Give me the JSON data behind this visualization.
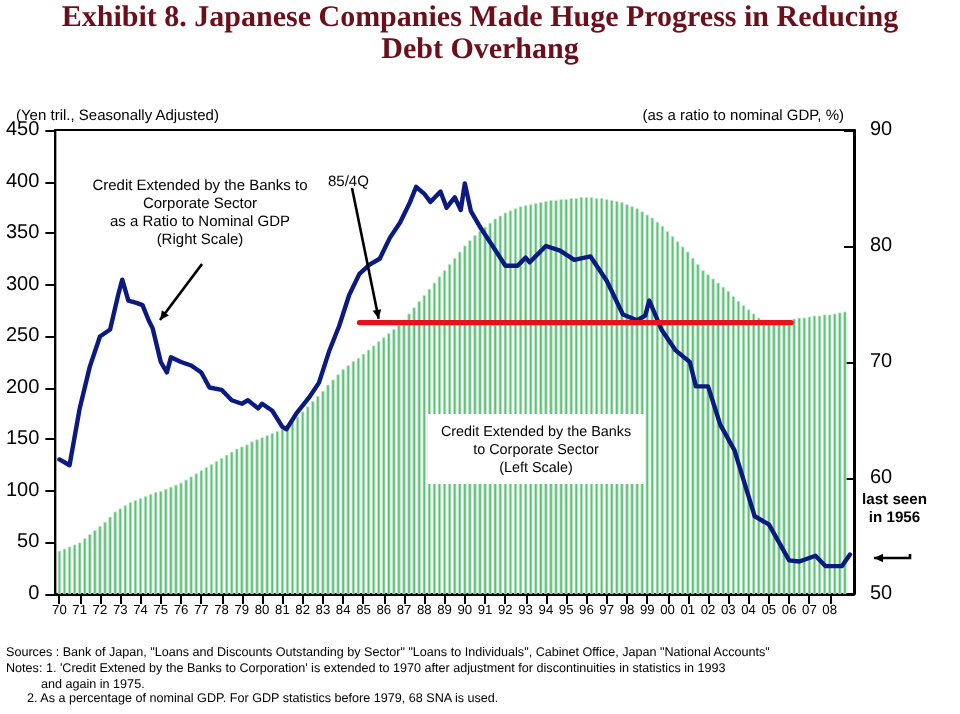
{
  "chart_data": {
    "type": "bar",
    "title": "Exhibit 8.  Japanese Companies Made Huge Progress in Reducing\nDebt Overhang",
    "ylabel": "(Yen tril., Seasonally Adjusted)",
    "y2label": "(as a ratio to nominal GDP, %)",
    "x": [
      1970,
      1970.25,
      1970.5,
      1970.75,
      1971,
      1971.25,
      1971.5,
      1971.75,
      1972,
      1972.25,
      1972.5,
      1972.75,
      1973,
      1973.25,
      1973.5,
      1973.75,
      1974,
      1974.25,
      1974.5,
      1974.75,
      1975,
      1975.25,
      1975.5,
      1975.75,
      1976,
      1976.25,
      1976.5,
      1976.75,
      1977,
      1977.25,
      1977.5,
      1977.75,
      1978,
      1978.25,
      1978.5,
      1978.75,
      1979,
      1979.25,
      1979.5,
      1979.75,
      1980,
      1980.25,
      1980.5,
      1980.75,
      1981,
      1981.25,
      1981.5,
      1981.75,
      1982,
      1982.25,
      1982.5,
      1982.75,
      1983,
      1983.25,
      1983.5,
      1983.75,
      1984,
      1984.25,
      1984.5,
      1984.75,
      1985,
      1985.25,
      1985.5,
      1985.75,
      1986,
      1986.25,
      1986.5,
      1986.75,
      1987,
      1987.25,
      1987.5,
      1987.75,
      1988,
      1988.25,
      1988.5,
      1988.75,
      1989,
      1989.25,
      1989.5,
      1989.75,
      1990,
      1990.25,
      1990.5,
      1990.75,
      1991,
      1991.25,
      1991.5,
      1991.75,
      1992,
      1992.25,
      1992.5,
      1992.75,
      1993,
      1993.25,
      1993.5,
      1993.75,
      1994,
      1994.25,
      1994.5,
      1994.75,
      1995,
      1995.25,
      1995.5,
      1995.75,
      1996,
      1996.25,
      1996.5,
      1996.75,
      1997,
      1997.25,
      1997.5,
      1997.75,
      1998,
      1998.25,
      1998.5,
      1998.75,
      1999,
      1999.25,
      1999.5,
      1999.75,
      2000,
      2000.25,
      2000.5,
      2000.75,
      2001,
      2001.25,
      2001.5,
      2001.75,
      2002,
      2002.25,
      2002.5,
      2002.75,
      2003,
      2003.25,
      2003.5,
      2003.75,
      2004,
      2004.25,
      2004.5,
      2004.75,
      2005,
      2005.25,
      2005.5,
      2005.75,
      2006,
      2006.25,
      2006.5,
      2006.75,
      2007,
      2007.25,
      2007.5,
      2007.75,
      2008,
      2008.25,
      2008.5,
      2008.75
    ],
    "series": [
      {
        "color": "#5fbf7b",
        "values": [
          42,
          44,
          46,
          48,
          50,
          54,
          58,
          62,
          66,
          70,
          75,
          80,
          83,
          86,
          89,
          91,
          93,
          95,
          97,
          99,
          100,
          102,
          104,
          106,
          108,
          111,
          114,
          117,
          120,
          123,
          126,
          129,
          132,
          135,
          138,
          141,
          143,
          145,
          148,
          150,
          152,
          154,
          156,
          158,
          160,
          163,
          167,
          172,
          177,
          182,
          187,
          192,
          197,
          203,
          208,
          213,
          218,
          222,
          226,
          229,
          233,
          237,
          241,
          245,
          249,
          253,
          257,
          261,
          266,
          272,
          278,
          284,
          290,
          296,
          302,
          308,
          314,
          320,
          326,
          332,
          338,
          343,
          348,
          352,
          356,
          360,
          364,
          367,
          370,
          372,
          374,
          376,
          377,
          378,
          379,
          380,
          381,
          382,
          382,
          383,
          383,
          384,
          384,
          385,
          385,
          385,
          384,
          384,
          383,
          382,
          381,
          380,
          378,
          376,
          374,
          371,
          368,
          365,
          361,
          357,
          352,
          347,
          342,
          337,
          332,
          326,
          320,
          314,
          310,
          306,
          302,
          298,
          294,
          289,
          284,
          280,
          276,
          272,
          268,
          266,
          264,
          264,
          264,
          265,
          266,
          267,
          268,
          268,
          269,
          270,
          270,
          271,
          271,
          272,
          273,
          274
        ]
      },
      {
        "type": "line",
        "axis": "y2",
        "color": "#0a1a80",
        "x": [
          1970,
          1970.5,
          1971,
          1971.5,
          1972,
          1972.5,
          1972.9,
          1973.1,
          1973.4,
          1973.8,
          1974.1,
          1974.4,
          1974.6,
          1975,
          1975.3,
          1975.5,
          1976,
          1976.5,
          1977,
          1977.4,
          1978,
          1978.5,
          1979,
          1979.3,
          1979.8,
          1980,
          1980.5,
          1981,
          1981.2,
          1981.7,
          1982.3,
          1982.8,
          1983.3,
          1983.8,
          1984.3,
          1984.8,
          1985.3,
          1985.8,
          1986.3,
          1986.8,
          1987.3,
          1987.6,
          1988,
          1988.3,
          1988.8,
          1989.1,
          1989.5,
          1989.8,
          1990,
          1990.3,
          1990.8,
          1991.3,
          1992,
          1992.6,
          1993,
          1993.2,
          1994,
          1994.7,
          1995.4,
          1996.2,
          1997,
          1997.8,
          1998.5,
          1998.9,
          1999.1,
          1999.7,
          2000.4,
          2001.1,
          2001.4,
          2002,
          2002.6,
          2003.3,
          2004.3,
          2005,
          2006,
          2006.5,
          2007.3,
          2007.8,
          2008.6,
          2009
        ],
        "values": [
          61.6,
          61.1,
          66,
          69.6,
          72.2,
          72.8,
          75.8,
          77.1,
          75.3,
          75.1,
          74.9,
          73.6,
          72.9,
          70,
          69.1,
          70.4,
          70,
          69.7,
          69.1,
          67.8,
          67.6,
          66.7,
          66.4,
          66.7,
          66,
          66.4,
          65.8,
          64.4,
          64.2,
          65.6,
          66.9,
          68.2,
          70.9,
          73.1,
          75.8,
          77.6,
          78.4,
          78.9,
          80.7,
          82,
          83.8,
          85.1,
          84.5,
          83.8,
          84.7,
          83.3,
          84.2,
          83.1,
          85.4,
          83,
          81.5,
          80.2,
          78.3,
          78.3,
          79,
          78.6,
          80,
          79.6,
          78.8,
          79.1,
          77,
          74.1,
          73.6,
          74,
          75.3,
          72.8,
          71,
          70,
          67.9,
          67.9,
          64.6,
          62.4,
          56.7,
          56,
          52.9,
          52.8,
          53.3,
          52.4,
          52.4,
          53.4
        ]
      },
      {
        "type": "line",
        "axis": "y2",
        "color": "#e8101a",
        "x": [
          1984.8,
          2006.1
        ],
        "values": [
          73.4,
          73.4
        ]
      }
    ],
    "xlim": [
      1969.8,
      2009.2
    ],
    "xticks": [
      {
        "value": 1970,
        "label": "70"
      },
      {
        "value": 1971,
        "label": "71"
      },
      {
        "value": 1972,
        "label": "72"
      },
      {
        "value": 1973,
        "label": "73"
      },
      {
        "value": 1974,
        "label": "74"
      },
      {
        "value": 1975,
        "label": "75"
      },
      {
        "value": 1976,
        "label": "76"
      },
      {
        "value": 1977,
        "label": "77"
      },
      {
        "value": 1978,
        "label": "78"
      },
      {
        "value": 1979,
        "label": "79"
      },
      {
        "value": 1980,
        "label": "80"
      },
      {
        "value": 1981,
        "label": "81"
      },
      {
        "value": 1982,
        "label": "82"
      },
      {
        "value": 1983,
        "label": "83"
      },
      {
        "value": 1984,
        "label": "84"
      },
      {
        "value": 1985,
        "label": "85"
      },
      {
        "value": 1986,
        "label": "86"
      },
      {
        "value": 1987,
        "label": "87"
      },
      {
        "value": 1988,
        "label": "88"
      },
      {
        "value": 1989,
        "label": "89"
      },
      {
        "value": 1990,
        "label": "90"
      },
      {
        "value": 1991,
        "label": "91"
      },
      {
        "value": 1992,
        "label": "92"
      },
      {
        "value": 1993,
        "label": "93"
      },
      {
        "value": 1994,
        "label": "94"
      },
      {
        "value": 1995,
        "label": "95"
      },
      {
        "value": 1996,
        "label": "96"
      },
      {
        "value": 1997,
        "label": "97"
      },
      {
        "value": 1998,
        "label": "98"
      },
      {
        "value": 1999,
        "label": "99"
      },
      {
        "value": 2000,
        "label": "00"
      },
      {
        "value": 2001,
        "label": "01"
      },
      {
        "value": 2002,
        "label": "02"
      },
      {
        "value": 2003,
        "label": "03"
      },
      {
        "value": 2004,
        "label": "04"
      },
      {
        "value": 2005,
        "label": "05"
      },
      {
        "value": 2006,
        "label": "06"
      },
      {
        "value": 2007,
        "label": "07"
      },
      {
        "value": 2008,
        "label": "08"
      }
    ],
    "ylim": [
      0,
      450
    ],
    "yticks": [
      0,
      50,
      100,
      150,
      200,
      250,
      300,
      350,
      400,
      450
    ],
    "y2lim": [
      50,
      90
    ],
    "y2ticks": [
      50,
      60,
      70,
      80,
      90
    ],
    "grid": false,
    "annotations": [
      "Credit Extended by the Banks to\nCorporate Sector\nas a Ratio to Nominal GDP\n(Right Scale)",
      {
        "text": "85/4Q",
        "x": 1985.75,
        "y": 263
      },
      "Credit Extended by the Banks\nto Corporate Sector\n(Left Scale)",
      "last seen\nin 1956",
      "Sources : Bank of Japan, \"Loans and Discounts Outstanding by Sector\" \"Loans to Individuals\", Cabinet Office, Japan \"National Accounts\"",
      "Notes: 1. 'Credit Extened by the Banks to Corporation' is extended to 1970 after adjustment for discontinuities in statistics in 1993\n          and again in 1975.\n      2. As a percentage of nominal GDP. For GDP statistics before 1979, 68 SNA is used."
    ]
  }
}
